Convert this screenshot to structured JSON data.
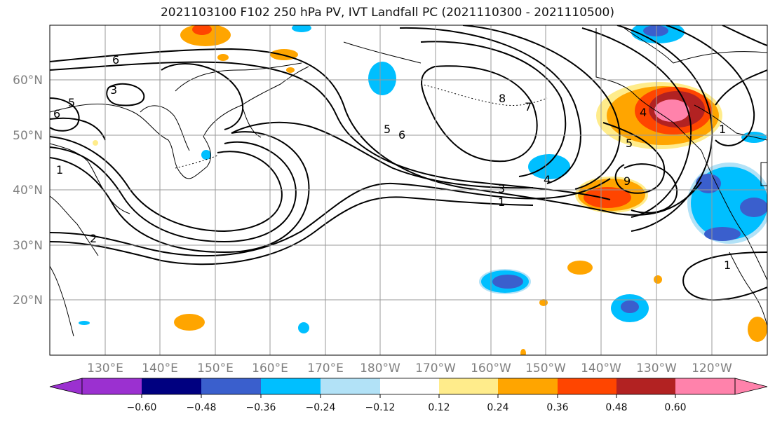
{
  "title": "2021103100 F102 250 hPa PV, IVT Landfall PC (2021110300 - 2021110500)",
  "map": {
    "lat_labels": [
      "60°N",
      "50°N",
      "40°N",
      "30°N",
      "20°N"
    ],
    "lon_labels": [
      "130°E",
      "140°E",
      "150°E",
      "160°E",
      "170°E",
      "180°W",
      "170°W",
      "160°W",
      "150°W",
      "140°W",
      "130°W",
      "120°W"
    ],
    "contour_labels": [
      "6",
      "3",
      "5",
      "6",
      "1",
      "2",
      "5",
      "6",
      "8",
      "7",
      "4",
      "3",
      "1",
      "5",
      "9",
      "4",
      "1",
      "1"
    ]
  },
  "colorbar": {
    "tick_labels": [
      "−0.60",
      "−0.48",
      "−0.36",
      "−0.24",
      "−0.12",
      "0.12",
      "0.24",
      "0.36",
      "0.48",
      "0.60"
    ],
    "colors": [
      "#9b30d0",
      "#000080",
      "#3a5fcd",
      "#00bfff",
      "#b2e2f7",
      "#ffffff",
      "#ffec8b",
      "#ffa500",
      "#ff4500",
      "#b22222",
      "#ff82ab",
      "#ff82ab"
    ]
  }
}
